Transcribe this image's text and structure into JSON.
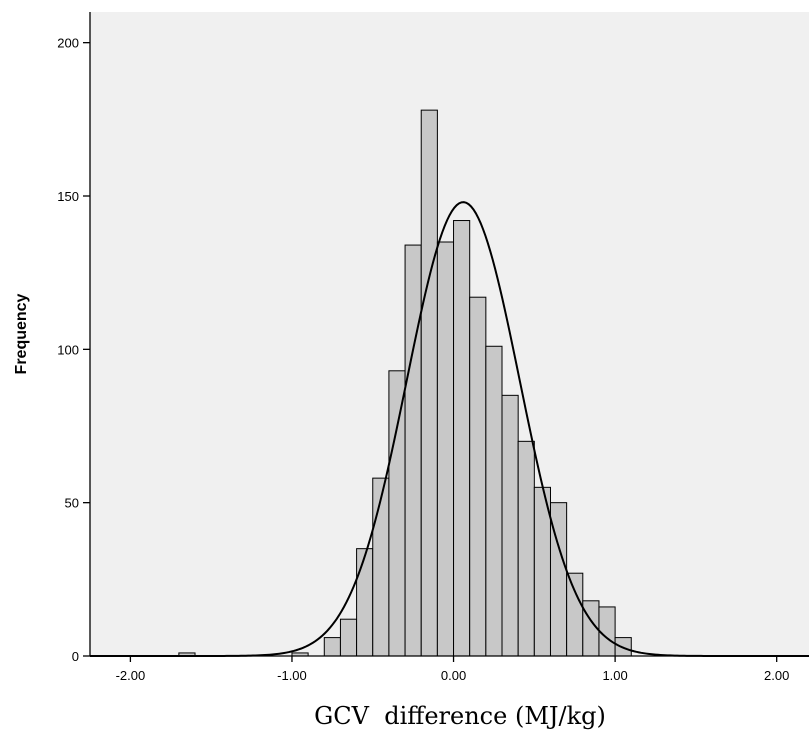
{
  "chart_data": {
    "type": "bar",
    "title": "",
    "xlabel": "GCV  difference (MJ/kg)",
    "ylabel": "Frequency",
    "xlim": [
      -2.25,
      2.2
    ],
    "ylim": [
      0,
      210
    ],
    "x_ticks": [
      -2.0,
      -1.0,
      0.0,
      1.0,
      2.0
    ],
    "x_tick_labels": [
      "-2.00",
      "-1.00",
      "0.00",
      "1.00",
      "2.00"
    ],
    "y_ticks": [
      0,
      50,
      100,
      150,
      200
    ],
    "y_tick_labels": [
      "0",
      "50",
      "100",
      "150",
      "200"
    ],
    "bin_width": 0.1,
    "bins": [
      {
        "start": -1.7,
        "count": 1
      },
      {
        "start": -1.0,
        "count": 1
      },
      {
        "start": -0.8,
        "count": 6
      },
      {
        "start": -0.7,
        "count": 12
      },
      {
        "start": -0.6,
        "count": 35
      },
      {
        "start": -0.5,
        "count": 58
      },
      {
        "start": -0.4,
        "count": 93
      },
      {
        "start": -0.3,
        "count": 134
      },
      {
        "start": -0.2,
        "count": 178
      },
      {
        "start": -0.1,
        "count": 135
      },
      {
        "start": 0.0,
        "count": 142
      },
      {
        "start": 0.1,
        "count": 117
      },
      {
        "start": 0.2,
        "count": 101
      },
      {
        "start": 0.3,
        "count": 85
      },
      {
        "start": 0.4,
        "count": 70
      },
      {
        "start": 0.5,
        "count": 55
      },
      {
        "start": 0.6,
        "count": 50
      },
      {
        "start": 0.7,
        "count": 27
      },
      {
        "start": 0.8,
        "count": 18
      },
      {
        "start": 0.9,
        "count": 16
      },
      {
        "start": 1.0,
        "count": 6
      }
    ],
    "normal_curve": {
      "mean": 0.06,
      "sd": 0.35,
      "peak": 148
    },
    "grid": false,
    "legend": "none",
    "colors": {
      "background": "#f0f0f0",
      "bar_fill": "#c8c8c8",
      "bar_stroke": "#000000",
      "curve": "#000000"
    }
  }
}
